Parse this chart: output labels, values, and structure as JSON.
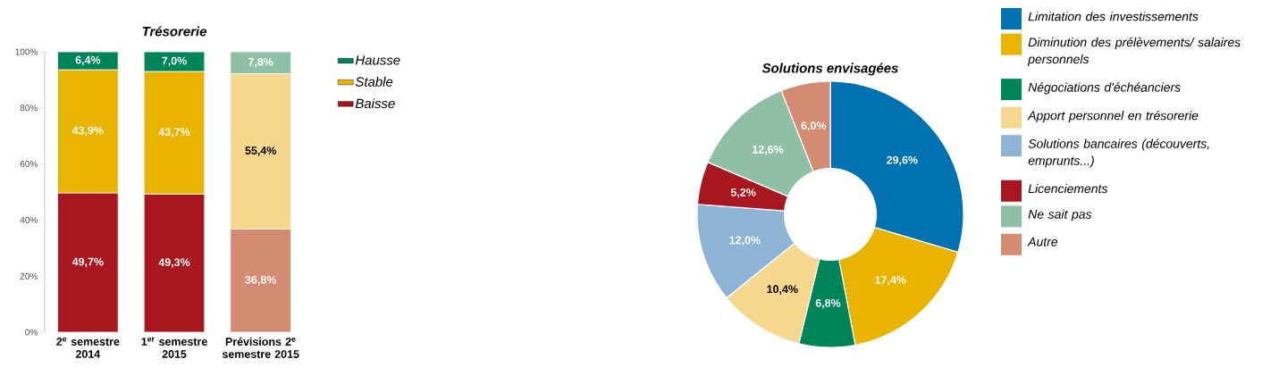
{
  "chart_data": [
    {
      "type": "bar",
      "title": "Trésorerie",
      "stacked": true,
      "legend": "right",
      "categories": [
        "2$^{e}$ semestre 2014",
        "1$^{er}$ semestre 2015",
        "Prévisions 2$^{e}$ semestre 2015"
      ],
      "ylim": [
        0,
        100
      ],
      "yticks": [
        {
          "value": 0,
          "label": "0%"
        },
        {
          "value": 20,
          "label": "20%"
        },
        {
          "value": 40,
          "label": "40%"
        },
        {
          "value": 60,
          "label": "60%"
        },
        {
          "value": 80,
          "label": "80%"
        },
        {
          "value": 100,
          "label": "100%"
        }
      ],
      "series": [
        {
          "name": "Baisse",
          "color": "#a8161f",
          "colors": [
            "#a8161f",
            "#a8161f",
            "#d38c72"
          ],
          "values": [
            49.7,
            49.3,
            36.8
          ],
          "value_labels": [
            "49,7%",
            "49,3%",
            "36,8%"
          ]
        },
        {
          "name": "Stable",
          "color": "#e8b400",
          "colors": [
            "#e8b400",
            "#e8b400",
            "#f5d78e"
          ],
          "values": [
            43.9,
            43.7,
            55.4
          ],
          "value_labels": [
            "43,9%",
            "43,7%",
            "55,4%"
          ]
        },
        {
          "name": "Hausse",
          "color": "#00855a",
          "colors": [
            "#00855a",
            "#00855a",
            "#8fc0a5"
          ],
          "values": [
            6.4,
            7.0,
            7.8
          ],
          "value_labels": [
            "6,4%",
            "7,0%",
            "7,8%"
          ]
        }
      ]
    },
    {
      "type": "donut",
      "title": "Solutions envisagées",
      "legend": "right",
      "categories": [
        "Limitation des investissements",
        "Diminution des prélèvements/ salaires personnels",
        "Négociations d'échéanciers",
        "Apport personnel en trésorerie",
        "Solutions bancaires (découverts, emprunts...)",
        "Licenciements",
        "Ne sait pas",
        "Autre"
      ],
      "values": [
        29.6,
        17.4,
        6.8,
        10.4,
        12.0,
        5.2,
        12.6,
        6.0
      ],
      "value_labels": [
        "29,6%",
        "17,4%",
        "6,8%",
        "10,4%",
        "12,0%",
        "5,2%",
        "12,6%",
        "6,0%"
      ],
      "colors": [
        "#0072b1",
        "#e8b400",
        "#00855a",
        "#f5d78e",
        "#8db4d6",
        "#a8161f",
        "#8fc0a5",
        "#d38c72"
      ]
    }
  ]
}
